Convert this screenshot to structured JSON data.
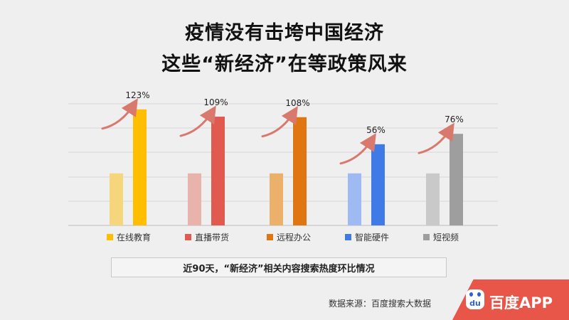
{
  "title": {
    "line1": "疫情没有击垮中国经济",
    "line2": "这些“新经济”在等政策风来"
  },
  "chart_data": {
    "type": "bar",
    "categories": [
      "在线教育",
      "直播带货",
      "远程办公",
      "智能硬件",
      "短视频"
    ],
    "series": [
      {
        "values": [
          1.0,
          1.0,
          1.0,
          1.0,
          1.0
        ]
      },
      {
        "values": [
          2.23,
          2.09,
          2.08,
          1.56,
          1.76
        ]
      }
    ],
    "growth_labels": [
      "123%",
      "109%",
      "108%",
      "56%",
      "76%"
    ],
    "colors": {
      "base": [
        "#f5d67c",
        "#e8b3aa",
        "#ebb16b",
        "#9fbaf3",
        "#c9c9c9"
      ],
      "current": [
        "#ffbe00",
        "#e05a4f",
        "#e07612",
        "#3f7ae6",
        "#9e9e9e"
      ],
      "arrow": "#d9796e"
    },
    "legend_position": "bottom",
    "grid": true,
    "ylim": [
      0,
      2.35
    ]
  },
  "caption": "近90天，“新经济”相关内容搜索热度环比情况",
  "source": "数据来源：百度搜索大数据",
  "brand": {
    "logo_text": "du",
    "name": "百度APP"
  }
}
